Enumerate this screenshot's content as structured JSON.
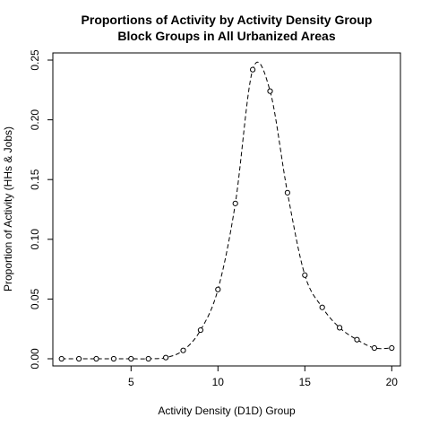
{
  "chart_data": {
    "type": "line",
    "title": "Proportions of Activity by Activity Density Group",
    "subtitle": "Block Groups in All Urbanized Areas",
    "xlabel": "Activity Density (D1D) Group",
    "ylabel": "Proportion of Activity (HHs & Jobs)",
    "xlim": [
      0.5,
      20.5
    ],
    "ylim": [
      -0.006,
      0.256
    ],
    "x_ticks": [
      5,
      10,
      15,
      20
    ],
    "y_ticks": [
      0.0,
      0.05,
      0.1,
      0.15,
      0.2,
      0.25
    ],
    "x_tick_labels": [
      "5",
      "10",
      "15",
      "20"
    ],
    "y_tick_labels": [
      "0.00",
      "0.05",
      "0.10",
      "0.15",
      "0.20",
      "0.25"
    ],
    "grid": false,
    "line_style": "dashed",
    "marker": "open-circle",
    "colors": {
      "line": "#000000",
      "marker": "#000000"
    },
    "x": [
      1,
      2,
      3,
      4,
      5,
      6,
      7,
      8,
      9,
      10,
      11,
      12,
      13,
      14,
      15,
      16,
      17,
      18,
      19,
      20
    ],
    "y": [
      0.0,
      0.0,
      0.0,
      0.0,
      0.0,
      0.0,
      0.001,
      0.007,
      0.024,
      0.058,
      0.13,
      0.242,
      0.224,
      0.139,
      0.07,
      0.043,
      0.026,
      0.016,
      0.009,
      0.009
    ]
  }
}
